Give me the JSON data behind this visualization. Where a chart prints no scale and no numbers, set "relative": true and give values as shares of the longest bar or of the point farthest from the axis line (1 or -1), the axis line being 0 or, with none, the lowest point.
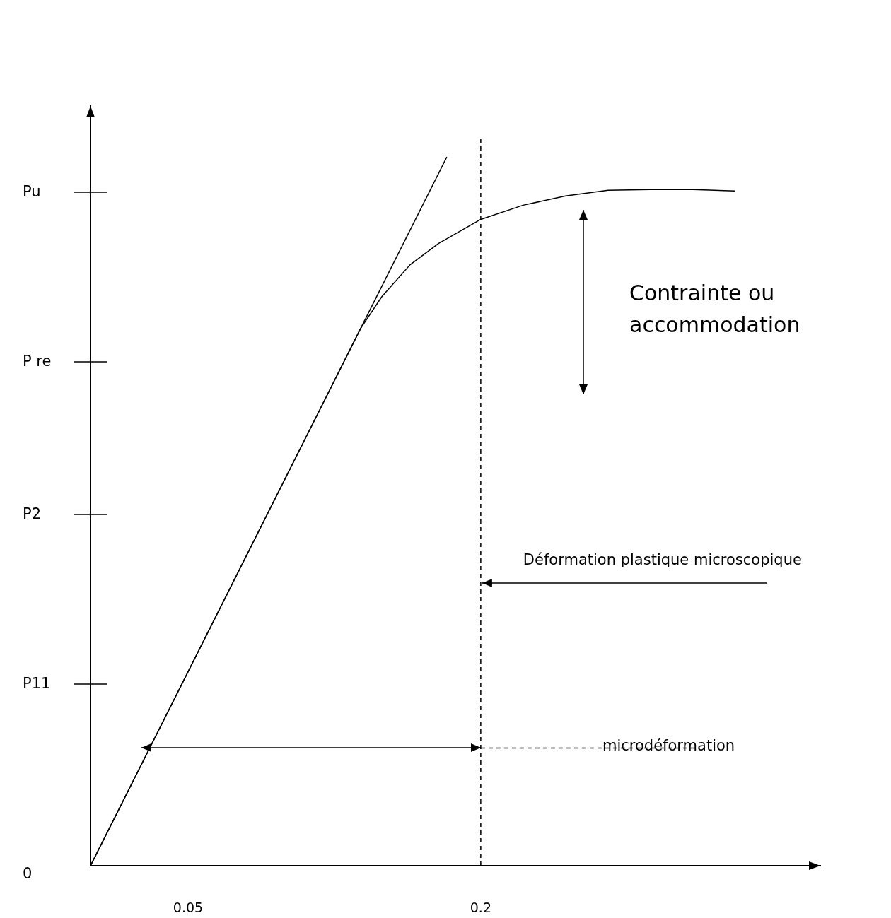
{
  "chart_data": {
    "type": "line",
    "relative": true,
    "x": [
      0,
      0.0623,
      0.1167,
      0.1384,
      0.1493,
      0.1638,
      0.1783,
      0.2,
      0.2217,
      0.2435,
      0.2652,
      0.287,
      0.3087,
      0.3304
    ],
    "series": [
      {
        "color": "#000000",
        "values": [
          0,
          0.341,
          0.639,
          0.758,
          0.803,
          0.848,
          0.878,
          0.912,
          0.932,
          0.945,
          0.953,
          0.954,
          0.954,
          0.952
        ]
      },
      {
        "color": "#000000",
        "x": [
          0,
          0.1826
        ],
        "values": [
          0,
          1
        ]
      },
      {
        "color": "#000000",
        "x": [
          0.2,
          0.3123
        ],
        "values": [
          0.166,
          0.166
        ],
        "line_style": "dashed"
      }
    ],
    "xlim": [
      0,
      0.374
    ],
    "xticks": [
      0.05,
      0.2
    ],
    "ref_lines": [
      {
        "axis": "x",
        "value": 0.2,
        "line_style": "dashed",
        "color": "#000000"
      }
    ],
    "annotations": [
      "0",
      "P11",
      "P2",
      "P re",
      "Pu",
      "Contrainte ou accommodation",
      {
        "text": "Déformation plastique microscopique",
        "x": 0.2,
        "y": 0.399
      },
      "microdéformation"
    ],
    "line_style": "solid",
    "grid": false
  }
}
